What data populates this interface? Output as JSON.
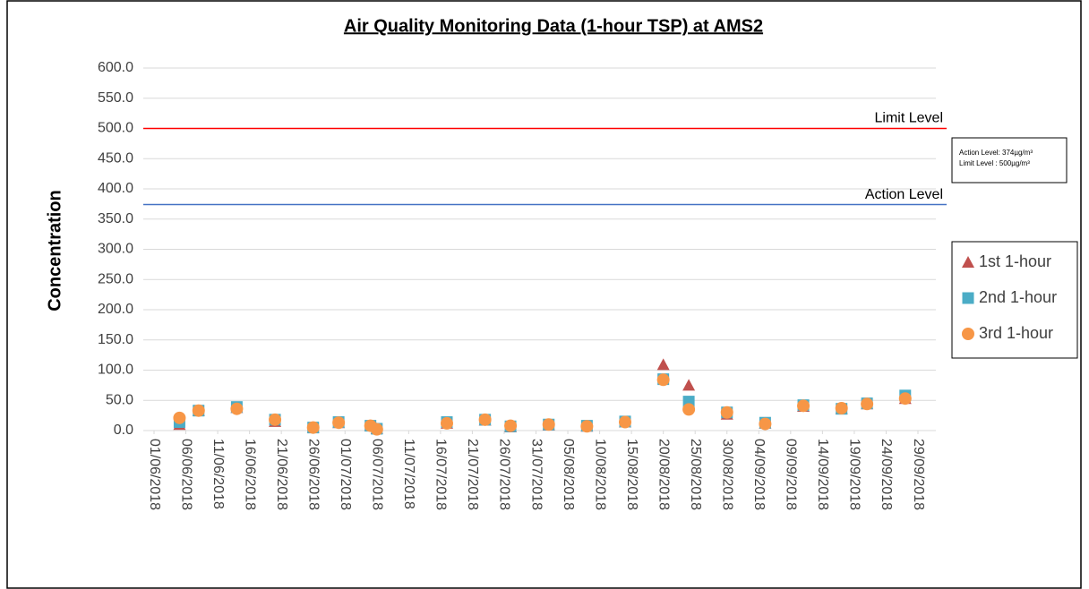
{
  "chart_data": {
    "type": "scatter",
    "title": "Air Quality Monitoring Data (1-hour TSP) at AMS2",
    "y_label": "Concentration",
    "ylim": [
      0,
      600
    ],
    "yticks": [
      {
        "value": 0,
        "label": "0.0"
      },
      {
        "value": 50,
        "label": "50.0"
      },
      {
        "value": 100,
        "label": "100.0"
      },
      {
        "value": 150,
        "label": "150.0"
      },
      {
        "value": 200,
        "label": "200.0"
      },
      {
        "value": 250,
        "label": "250.0"
      },
      {
        "value": 300,
        "label": "300.0"
      },
      {
        "value": 350,
        "label": "350.0"
      },
      {
        "value": 400,
        "label": "400.0"
      },
      {
        "value": 450,
        "label": "450.0"
      },
      {
        "value": 500,
        "label": "500.0"
      },
      {
        "value": 550,
        "label": "550.0"
      },
      {
        "value": 600,
        "label": "600.0"
      }
    ],
    "xlim": [
      "01/06/2018",
      "29/09/2018"
    ],
    "xticks": [
      "01/06/2018",
      "06/06/2018",
      "11/06/2018",
      "16/06/2018",
      "21/06/2018",
      "26/06/2018",
      "01/07/2018",
      "06/07/2018",
      "11/07/2018",
      "16/07/2018",
      "21/07/2018",
      "26/07/2018",
      "31/07/2018",
      "05/08/2018",
      "10/08/2018",
      "15/08/2018",
      "20/08/2018",
      "25/08/2018",
      "30/08/2018",
      "04/09/2018",
      "09/09/2018",
      "14/09/2018",
      "19/09/2018",
      "24/09/2018",
      "29/09/2018"
    ],
    "grid": true,
    "x": [
      "05/06/2018",
      "08/06/2018",
      "14/06/2018",
      "20/06/2018",
      "26/06/2018",
      "30/06/2018",
      "05/07/2018",
      "06/07/2018",
      "17/07/2018",
      "23/07/2018",
      "27/07/2018",
      "02/08/2018",
      "08/08/2018",
      "14/08/2018",
      "20/08/2018",
      "24/08/2018",
      "30/08/2018",
      "05/09/2018",
      "11/09/2018",
      "17/09/2018",
      "21/09/2018",
      "27/09/2018"
    ],
    "series": [
      {
        "name": "1st 1-hour",
        "color": "#c0504d",
        "marker": "triangle",
        "values": [
          10,
          33,
          38,
          15,
          5,
          13,
          8,
          3,
          12,
          17,
          6,
          9,
          7,
          14,
          109,
          75,
          27,
          12,
          40,
          36,
          44,
          53
        ]
      },
      {
        "name": "2nd 1-hour",
        "color": "#4bacc6",
        "marker": "square",
        "values": [
          14,
          33,
          39,
          18,
          5,
          14,
          8,
          3,
          14,
          18,
          7,
          10,
          8,
          15,
          85,
          48,
          30,
          13,
          42,
          36,
          45,
          58
        ]
      },
      {
        "name": "3rd 1-hour",
        "color": "#f79646",
        "marker": "circle",
        "values": [
          21,
          33,
          36,
          18,
          5,
          13,
          8,
          2,
          12,
          18,
          8,
          10,
          7,
          14,
          84,
          35,
          30,
          11,
          41,
          37,
          44,
          53
        ]
      }
    ],
    "reference_lines": [
      {
        "label": "Limit Level",
        "value": 500,
        "color": "#ff0000"
      },
      {
        "label": "Action Level",
        "value": 374,
        "color": "#4472c4"
      }
    ],
    "annotations": [
      "Action Level: 374µg/m³",
      "Limit Level : 500µg/m³"
    ],
    "legend": "right"
  }
}
